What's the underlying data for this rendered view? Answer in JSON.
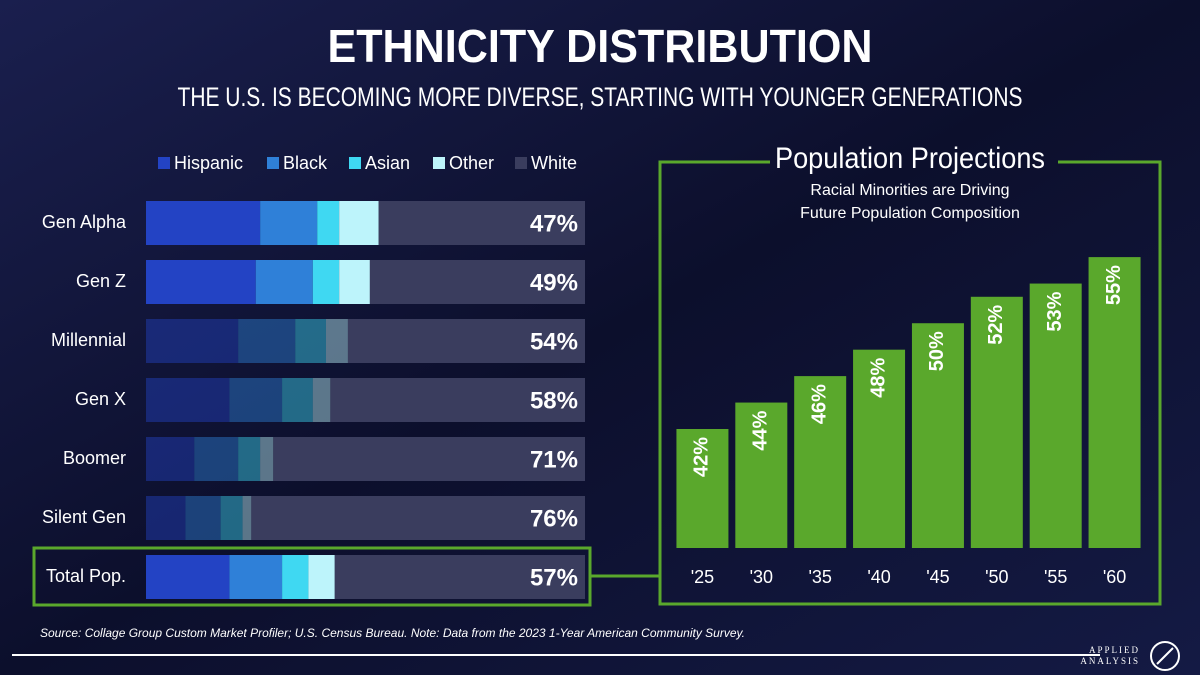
{
  "header": {
    "title": "ETHNICITY DISTRIBUTION",
    "subtitle": "THE U.S. IS BECOMING MORE DIVERSE, STARTING WITH YOUNGER GENERATIONS"
  },
  "chart_data": [
    {
      "type": "bar",
      "orientation": "horizontal",
      "stacked": true,
      "categories": [
        "Gen Alpha",
        "Gen Z",
        "Millennial",
        "Gen X",
        "Boomer",
        "Silent Gen",
        "Total Pop."
      ],
      "highlight": [
        true,
        true,
        false,
        false,
        false,
        false,
        true
      ],
      "xlim": [
        0,
        100
      ],
      "series": [
        {
          "name": "Hispanic",
          "color": "#2343c4",
          "values": [
            26,
            25,
            21,
            19,
            11,
            9,
            19
          ]
        },
        {
          "name": "Black",
          "color": "#2f80d8",
          "values": [
            13,
            13,
            13,
            12,
            10,
            8,
            12
          ]
        },
        {
          "name": "Asian",
          "color": "#3fd8f2",
          "values": [
            5,
            6,
            7,
            7,
            5,
            5,
            6
          ]
        },
        {
          "name": "Other",
          "color": "#bdf4fb",
          "values": [
            9,
            7,
            5,
            4,
            3,
            2,
            6
          ]
        },
        {
          "name": "White",
          "color": "#3a3d5e",
          "values": [
            47,
            49,
            54,
            58,
            71,
            76,
            57
          ],
          "value_labels": [
            "47%",
            "49%",
            "54%",
            "58%",
            "71%",
            "76%",
            "57%"
          ]
        }
      ]
    },
    {
      "type": "bar",
      "title": "Population Projections",
      "subtitle": [
        "Racial Minorities are Driving",
        "Future Population Composition"
      ],
      "categories": [
        "'25",
        "'30",
        "'35",
        "'40",
        "'45",
        "'50",
        "'55",
        "'60"
      ],
      "values": [
        42,
        44,
        46,
        48,
        50,
        52,
        53,
        55
      ],
      "value_labels": [
        "42%",
        "44%",
        "46%",
        "48%",
        "50%",
        "52%",
        "53%",
        "55%"
      ],
      "color": "#5aa82c",
      "ylim": [
        33,
        60
      ]
    }
  ],
  "source": "Source: Collage Group Custom Market Profiler; U.S. Census Bureau. Note: Data from the 2023 1-Year American Community Survey.",
  "logo": {
    "line1": "APPLIED",
    "line2": "ANALYSIS"
  }
}
